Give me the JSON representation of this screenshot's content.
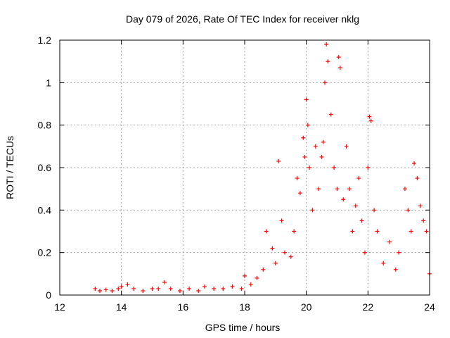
{
  "chart_data": {
    "type": "scatter",
    "title": "Day 079 of 2026, Rate Of TEC Index for receiver nklg",
    "xlabel": "GPS time / hours",
    "ylabel": "ROTI / TECUs",
    "xlim": [
      12,
      24
    ],
    "ylim": [
      0,
      1.2
    ],
    "xticks": [
      12,
      14,
      16,
      18,
      20,
      22,
      24
    ],
    "yticks": [
      0,
      0.2,
      0.4,
      0.6,
      0.8,
      1,
      1.2
    ],
    "xtick_labels": [
      "12",
      "14",
      "16",
      "18",
      "20",
      "22",
      "24"
    ],
    "ytick_labels": [
      "0",
      "0.2",
      "0.4",
      "0.6",
      "0.8",
      "1",
      "1.2"
    ],
    "grid": true,
    "marker": "plus",
    "color": "#ff0000",
    "series": [
      {
        "x": [
          13.15,
          13.3,
          13.5,
          13.7,
          13.9,
          14.0,
          14.2,
          14.4,
          14.7,
          15.0,
          15.2,
          15.4,
          15.6,
          15.9,
          16.2,
          16.5,
          16.7,
          17.0,
          17.3,
          17.6,
          17.9,
          18.0,
          18.2,
          18.4,
          18.6,
          18.7,
          18.9,
          19.0,
          19.1,
          19.2,
          19.3,
          19.5,
          19.6,
          19.7,
          19.8,
          19.9,
          19.95,
          20.0,
          20.05,
          20.1,
          20.2,
          20.3,
          20.4,
          20.5,
          20.55,
          20.6,
          20.65,
          20.7,
          20.8,
          20.9,
          21.0,
          21.05,
          21.1,
          21.2,
          21.3,
          21.4,
          21.5,
          21.6,
          21.7,
          21.8,
          21.9,
          22.0,
          22.05,
          22.1,
          22.2,
          22.3,
          22.5,
          22.7,
          22.9,
          23.0,
          23.2,
          23.3,
          23.4,
          23.5,
          23.6,
          23.7,
          23.8,
          23.9,
          24.0
        ],
        "y": [
          0.03,
          0.02,
          0.025,
          0.02,
          0.03,
          0.04,
          0.05,
          0.03,
          0.02,
          0.03,
          0.03,
          0.06,
          0.03,
          0.02,
          0.03,
          0.02,
          0.04,
          0.03,
          0.03,
          0.04,
          0.03,
          0.09,
          0.05,
          0.08,
          0.12,
          0.3,
          0.22,
          0.15,
          0.63,
          0.35,
          0.2,
          0.18,
          0.3,
          0.55,
          0.48,
          0.74,
          0.65,
          0.92,
          0.8,
          0.6,
          0.4,
          0.7,
          0.5,
          0.65,
          0.72,
          1.0,
          1.18,
          1.1,
          0.85,
          0.6,
          0.5,
          1.12,
          1.07,
          0.45,
          0.7,
          0.5,
          0.3,
          0.42,
          0.55,
          0.35,
          0.2,
          0.6,
          0.84,
          0.82,
          0.4,
          0.3,
          0.15,
          0.25,
          0.12,
          0.2,
          0.5,
          0.4,
          0.3,
          0.62,
          0.55,
          0.42,
          0.35,
          0.3,
          0.1
        ]
      }
    ]
  }
}
